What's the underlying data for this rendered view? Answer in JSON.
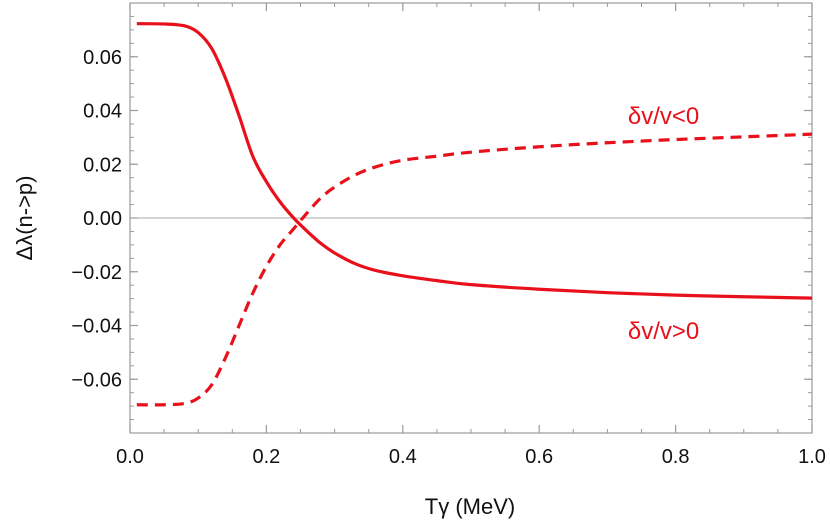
{
  "chart_data": {
    "type": "line",
    "xlabel": "Tγ   (MeV)",
    "ylabel": "Δλ(n->p)",
    "xlim": [
      0.0,
      1.0
    ],
    "ylim": [
      -0.08,
      0.08
    ],
    "x_ticks": [
      0.0,
      0.2,
      0.4,
      0.6,
      0.8,
      1.0
    ],
    "x_tick_labels": [
      "0.0",
      "0.2",
      "0.4",
      "0.6",
      "0.8",
      "1.0"
    ],
    "y_ticks": [
      0.06,
      0.04,
      0.02,
      0.0,
      -0.02,
      -0.04,
      -0.06
    ],
    "y_tick_labels": [
      "0.06",
      "0.04",
      "0.02",
      "0.00",
      "−0.02",
      "−0.04",
      "−0.06"
    ],
    "reference_line_y": 0.0,
    "grid": false,
    "colors": {
      "series": "#e8111b",
      "frame": "#9a9a9a",
      "zero_line": "#a8a8a8"
    },
    "series": [
      {
        "style": "solid",
        "label": "δv/v>0",
        "x": [
          0.01,
          0.05,
          0.08,
          0.1,
          0.12,
          0.14,
          0.16,
          0.18,
          0.2,
          0.22,
          0.24,
          0.26,
          0.28,
          0.3,
          0.33,
          0.36,
          0.4,
          0.45,
          0.5,
          0.6,
          0.7,
          0.8,
          0.9,
          1.0
        ],
        "y": [
          0.0723,
          0.0722,
          0.0715,
          0.069,
          0.063,
          0.052,
          0.038,
          0.023,
          0.0135,
          0.006,
          0.0,
          -0.005,
          -0.0095,
          -0.013,
          -0.017,
          -0.0195,
          -0.0215,
          -0.0233,
          -0.0248,
          -0.0265,
          -0.0278,
          -0.0287,
          -0.0293,
          -0.0298
        ]
      },
      {
        "style": "dashed",
        "label": "δv/v<0",
        "x": [
          0.01,
          0.05,
          0.08,
          0.1,
          0.12,
          0.14,
          0.16,
          0.18,
          0.2,
          0.22,
          0.24,
          0.26,
          0.28,
          0.3,
          0.33,
          0.36,
          0.4,
          0.45,
          0.5,
          0.6,
          0.7,
          0.8,
          0.9,
          1.0
        ],
        "y": [
          -0.0695,
          -0.0695,
          -0.069,
          -0.067,
          -0.062,
          -0.052,
          -0.04,
          -0.028,
          -0.018,
          -0.01,
          -0.004,
          0.002,
          0.0075,
          0.0115,
          0.016,
          0.019,
          0.0215,
          0.023,
          0.0245,
          0.0265,
          0.028,
          0.0292,
          0.0302,
          0.0312
        ]
      }
    ],
    "annotations": [
      {
        "text": "δv/v<0",
        "x": 0.73,
        "y": 0.038
      },
      {
        "text": "δv/v>0",
        "x": 0.73,
        "y": -0.042
      }
    ]
  }
}
